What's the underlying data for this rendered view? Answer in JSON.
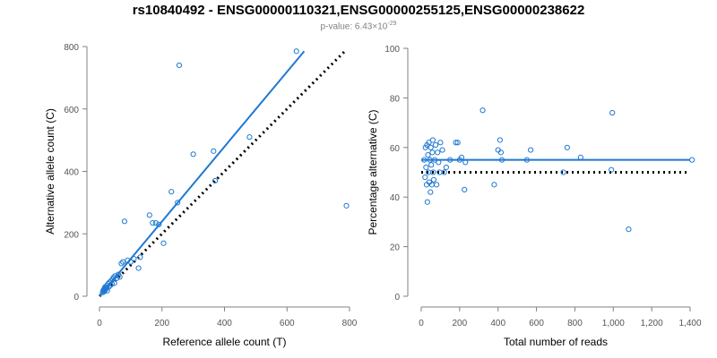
{
  "title": "rs10840492 - ENSG00000110321,ENSG00000255125,ENSG00000238622",
  "subtitle_prefix": "p-value: 6.43×10",
  "subtitle_exp": "-29",
  "colors": {
    "points": "#1f78d1",
    "fit": "#1f78d1",
    "reference": "#000000",
    "axis": "#808080"
  },
  "chart_data": [
    {
      "type": "scatter",
      "xlabel": "Reference allele count (T)",
      "ylabel": "Alternative allele count (C)",
      "xlim": [
        0,
        800
      ],
      "ylim": [
        0,
        800
      ],
      "xticks": [
        0,
        200,
        400,
        600,
        800
      ],
      "xtick_labels": [
        "0",
        "200",
        "400",
        "600",
        "800"
      ],
      "yticks": [
        0,
        200,
        400,
        600,
        800
      ],
      "ytick_labels": [
        "0",
        "200",
        "400",
        "600",
        "800"
      ],
      "fit_line": {
        "x": [
          0,
          655
        ],
        "y": [
          0,
          785
        ]
      },
      "reference_line": {
        "x": [
          0,
          790
        ],
        "y": [
          0,
          790
        ]
      },
      "points": [
        [
          10,
          12
        ],
        [
          12,
          18
        ],
        [
          14,
          22
        ],
        [
          15,
          15
        ],
        [
          16,
          25
        ],
        [
          18,
          20
        ],
        [
          18,
          30
        ],
        [
          20,
          22
        ],
        [
          22,
          28
        ],
        [
          24,
          35
        ],
        [
          25,
          18
        ],
        [
          28,
          40
        ],
        [
          30,
          30
        ],
        [
          32,
          45
        ],
        [
          35,
          35
        ],
        [
          38,
          50
        ],
        [
          40,
          40
        ],
        [
          42,
          55
        ],
        [
          45,
          60
        ],
        [
          48,
          42
        ],
        [
          50,
          65
        ],
        [
          55,
          58
        ],
        [
          60,
          70
        ],
        [
          65,
          62
        ],
        [
          70,
          105
        ],
        [
          75,
          110
        ],
        [
          80,
          240
        ],
        [
          90,
          115
        ],
        [
          100,
          110
        ],
        [
          110,
          120
        ],
        [
          125,
          90
        ],
        [
          130,
          125
        ],
        [
          160,
          260
        ],
        [
          170,
          235
        ],
        [
          180,
          235
        ],
        [
          190,
          230
        ],
        [
          205,
          170
        ],
        [
          230,
          335
        ],
        [
          250,
          300
        ],
        [
          255,
          740
        ],
        [
          300,
          455
        ],
        [
          365,
          465
        ],
        [
          370,
          370
        ],
        [
          480,
          510
        ],
        [
          630,
          785
        ],
        [
          790,
          290
        ]
      ]
    },
    {
      "type": "scatter",
      "xlabel": "Total number of reads",
      "ylabel": "Percentage alternative (C)",
      "xlim": [
        0,
        1400
      ],
      "ylim": [
        0,
        100
      ],
      "xticks": [
        0,
        200,
        400,
        600,
        800,
        1000,
        1200,
        1400
      ],
      "xtick_labels": [
        "0",
        "200",
        "400",
        "600",
        "800",
        "1,000",
        "1,200",
        "1,400"
      ],
      "yticks": [
        0,
        20,
        40,
        60,
        80,
        100
      ],
      "ytick_labels": [
        "0",
        "20",
        "40",
        "60",
        "80",
        "100"
      ],
      "fit_line": {
        "x": [
          0,
          1400
        ],
        "y": [
          55,
          55
        ]
      },
      "reference_line": {
        "x": [
          0,
          1400
        ],
        "y": [
          50,
          50
        ]
      },
      "points": [
        [
          15,
          55
        ],
        [
          20,
          48
        ],
        [
          22,
          60
        ],
        [
          25,
          52
        ],
        [
          28,
          45
        ],
        [
          30,
          61
        ],
        [
          32,
          38
        ],
        [
          35,
          57
        ],
        [
          38,
          50
        ],
        [
          40,
          62
        ],
        [
          42,
          46
        ],
        [
          45,
          55
        ],
        [
          48,
          42
        ],
        [
          50,
          60
        ],
        [
          52,
          53
        ],
        [
          55,
          45
        ],
        [
          58,
          58
        ],
        [
          60,
          63
        ],
        [
          62,
          50
        ],
        [
          65,
          47
        ],
        [
          70,
          55
        ],
        [
          75,
          61
        ],
        [
          80,
          45
        ],
        [
          85,
          58
        ],
        [
          90,
          54
        ],
        [
          95,
          50
        ],
        [
          100,
          62
        ],
        [
          110,
          59
        ],
        [
          120,
          50
        ],
        [
          130,
          52
        ],
        [
          150,
          55
        ],
        [
          180,
          62
        ],
        [
          190,
          62
        ],
        [
          200,
          55
        ],
        [
          210,
          56
        ],
        [
          225,
          43
        ],
        [
          230,
          54
        ],
        [
          320,
          75
        ],
        [
          380,
          45
        ],
        [
          400,
          59
        ],
        [
          410,
          63
        ],
        [
          415,
          58
        ],
        [
          420,
          55
        ],
        [
          550,
          55
        ],
        [
          570,
          59
        ],
        [
          740,
          50
        ],
        [
          760,
          60
        ],
        [
          830,
          56
        ],
        [
          990,
          51
        ],
        [
          995,
          74
        ],
        [
          1080,
          27
        ],
        [
          1410,
          55
        ]
      ]
    }
  ]
}
